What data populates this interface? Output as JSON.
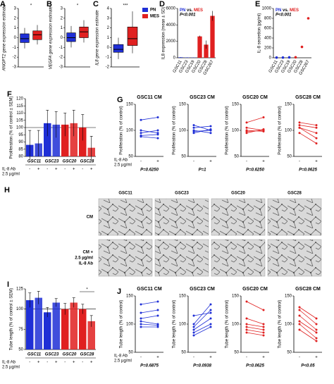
{
  "chart_data": [
    {
      "label": "A",
      "type": "box",
      "ylabel": "ANGPT2 gene expression estimate",
      "annotation": "*",
      "ylim": [
        -3,
        3
      ],
      "yticks": [
        -3,
        -2,
        -1,
        0,
        1,
        2,
        3
      ],
      "series": [
        {
          "color": "#1f2fd6",
          "whisker_low": -1.1,
          "q1": -0.5,
          "median": -0.1,
          "q3": 0.4,
          "whisker_high": 1.0
        },
        {
          "color": "#e02020",
          "whisker_low": -0.7,
          "q1": -0.2,
          "median": 0.3,
          "q3": 0.7,
          "whisker_high": 1.3
        }
      ]
    },
    {
      "label": "B",
      "type": "box",
      "ylabel": "VEGFA gene expression estimate",
      "annotation": "*",
      "ylim": [
        -3,
        3
      ],
      "yticks": [
        -3,
        -2,
        -1,
        0,
        1,
        2,
        3
      ],
      "series": [
        {
          "color": "#1f2fd6",
          "whisker_low": -1.0,
          "q1": -0.4,
          "median": 0.0,
          "q3": 0.5,
          "whisker_high": 1.2
        },
        {
          "color": "#e02020",
          "whisker_low": -0.5,
          "q1": 0.0,
          "median": 0.6,
          "q3": 1.1,
          "whisker_high": 1.8
        }
      ]
    },
    {
      "label": "C",
      "type": "box",
      "ylabel": "IL8 gene expression estimate",
      "annotation": "***",
      "ylim": [
        -2,
        4
      ],
      "yticks": [
        -2,
        -1,
        0,
        1,
        2,
        3,
        4
      ],
      "legend": "upper right",
      "series": [
        {
          "name": "PN",
          "color": "#1f2fd6",
          "whisker_low": -1.2,
          "q1": -0.5,
          "median": -0.2,
          "q3": 0.3,
          "whisker_high": 1.0
        },
        {
          "name": "MES",
          "color": "#e02020",
          "whisker_low": -0.6,
          "q1": 0.2,
          "median": 0.9,
          "q3": 2.1,
          "whisker_high": 3.7
        }
      ]
    },
    {
      "label": "D",
      "type": "bar",
      "ylabel": "IL8 expression (mean ± SD)",
      "annotation": [
        {
          "text": "PN",
          "color": "#1f2fd6"
        },
        {
          "text": "vs.",
          "color": "#000000"
        },
        {
          "text": "MES",
          "color": "#e02020"
        }
      ],
      "p_value": "P<0.001",
      "ylim": [
        0,
        6000
      ],
      "yticks": [
        0,
        2000,
        4000,
        6000
      ],
      "categories": [
        "GSC11",
        "GSC23",
        "GSC19",
        "GSC20",
        "GSC28",
        "GSC267"
      ],
      "values": [
        60,
        40,
        30,
        2600,
        1600,
        5100
      ],
      "errors": [
        20,
        10,
        10,
        100,
        500,
        600
      ],
      "colors": [
        "#1f2fd6",
        "#1f2fd6",
        "#1f2fd6",
        "#e02020",
        "#e02020",
        "#e02020"
      ]
    },
    {
      "label": "E",
      "type": "dot",
      "ylabel": "IL-8 secretion (pg/ml)",
      "annotation": [
        {
          "text": "PN",
          "color": "#1f2fd6"
        },
        {
          "text": "vs.",
          "color": "#000000"
        },
        {
          "text": "MES",
          "color": "#e02020"
        }
      ],
      "p_value": "P<0.001",
      "ylim": [
        0,
        1000
      ],
      "yticks": [
        0,
        200,
        400,
        600,
        800,
        1000
      ],
      "categories": [
        "GSC11",
        "GSC23",
        "GSC19",
        "GSC20",
        "GSC28",
        "GSC267"
      ],
      "values": [
        5,
        5,
        8,
        10,
        220,
        800
      ],
      "colors": [
        "#1f2fd6",
        "#1f2fd6",
        "#1f2fd6",
        "#e02020",
        "#e02020",
        "#e02020"
      ]
    },
    {
      "label": "F",
      "type": "grouped-bar",
      "ylabel": "Proliferation (% of control ± SEM)",
      "ylim": [
        80,
        120
      ],
      "yticks": [
        80,
        85,
        90,
        95,
        100,
        105,
        110,
        115,
        120
      ],
      "refline": 100,
      "groups": [
        "GSC11",
        "GSC23",
        "GSC20",
        "GSC28"
      ],
      "treatment": [
        "-",
        "+",
        "-",
        "+",
        "-",
        "+",
        "-",
        "+"
      ],
      "x_label": [
        "IL-8 Ab",
        "2.5 µg/ml"
      ],
      "values": [
        88,
        89,
        103,
        102,
        102,
        103,
        100,
        86
      ],
      "errors": [
        10,
        9,
        9,
        9,
        8,
        9,
        9,
        8
      ],
      "colors": [
        "#1f2fd6",
        "#1f2fd6",
        "#1f2fd6",
        "#1f2fd6",
        "#e02020",
        "#e02020",
        "#e02020",
        "#e02020"
      ]
    },
    {
      "label": "G",
      "type": "paired-line",
      "title": "GSC11 CM",
      "ylabel": "Proliferation (% of control)",
      "ylim": [
        50,
        150
      ],
      "yticks": [
        50,
        100,
        150
      ],
      "color": "#1f2fd6",
      "treatment": [
        "-",
        "+"
      ],
      "x_label": [
        "IL-8 Ab",
        "2.5 µg/ml"
      ],
      "p_value": "P=0.6250",
      "pairs": [
        [
          120,
          125
        ],
        [
          100,
          95
        ],
        [
          95,
          100
        ],
        [
          90,
          92
        ],
        [
          88,
          85
        ]
      ]
    },
    {
      "type": "paired-line",
      "title": "GSC23 CM",
      "ylabel": "Proliferation (% of control)",
      "ylim": [
        50,
        150
      ],
      "yticks": [
        50,
        100,
        150
      ],
      "color": "#1f2fd6",
      "treatment": [
        "-",
        "+"
      ],
      "p_value": "P=1",
      "pairs": [
        [
          110,
          100
        ],
        [
          105,
          108
        ],
        [
          100,
          95
        ],
        [
          98,
          100
        ],
        [
          95,
          102
        ]
      ]
    },
    {
      "type": "paired-line",
      "title": "GSC20 CM",
      "ylabel": "Proliferation (% of control)",
      "ylim": [
        50,
        150
      ],
      "yticks": [
        50,
        100,
        150
      ],
      "color": "#e02020",
      "treatment": [
        "-",
        "+"
      ],
      "p_value": "P=0.6250",
      "pairs": [
        [
          115,
          125
        ],
        [
          105,
          100
        ],
        [
          100,
          98
        ],
        [
          98,
          100
        ],
        [
          95,
          102
        ]
      ]
    },
    {
      "type": "paired-line",
      "title": "GSC28 CM",
      "ylabel": "Proliferation (% of control)",
      "ylim": [
        50,
        150
      ],
      "yticks": [
        50,
        100,
        150
      ],
      "color": "#e02020",
      "treatment": [
        "-",
        "+"
      ],
      "p_value": "P=0.0625",
      "pairs": [
        [
          115,
          110
        ],
        [
          110,
          105
        ],
        [
          105,
          95
        ],
        [
          105,
          85
        ],
        [
          95,
          75
        ]
      ]
    },
    {
      "label": "I",
      "type": "grouped-bar",
      "ylabel": "Tube length (% of control ± SEM)",
      "annotation": "*",
      "ylim": [
        50,
        125
      ],
      "yticks": [
        50,
        75,
        100,
        125
      ],
      "refline": 100,
      "groups": [
        "GSC11",
        "GSC23",
        "GSC20",
        "GSC28"
      ],
      "treatment": [
        "-",
        "+",
        "-",
        "+",
        "-",
        "+",
        "-",
        "+"
      ],
      "x_label": [
        "IL-8 Ab",
        "2.5 µg/ml"
      ],
      "values": [
        111,
        114,
        96,
        108,
        100,
        108,
        100,
        85
      ],
      "errors": [
        9,
        8,
        6,
        5,
        7,
        6,
        6,
        7
      ],
      "colors": [
        "#1f2fd6",
        "#1f2fd6",
        "#1f2fd6",
        "#1f2fd6",
        "#e02020",
        "#e02020",
        "#e02020",
        "#e02020"
      ]
    },
    {
      "label": "J",
      "type": "paired-line",
      "title": "GSC11 CM",
      "ylabel": "Tube length (% of control)",
      "ylim": [
        50,
        150
      ],
      "yticks": [
        50,
        100,
        150
      ],
      "color": "#1f2fd6",
      "treatment": [
        "-",
        "+"
      ],
      "x_label": [
        "IL-8 Ab",
        "2.5 µg/ml"
      ],
      "p_value": "P=0.6875",
      "pairs": [
        [
          135,
          140
        ],
        [
          120,
          125
        ],
        [
          110,
          115
        ],
        [
          105,
          100
        ],
        [
          100,
          98
        ],
        [
          95,
          95
        ]
      ]
    },
    {
      "type": "paired-line",
      "title": "GSC23 CM",
      "ylabel": "Tube length (% of control)",
      "ylim": [
        50,
        150
      ],
      "yticks": [
        50,
        100,
        150
      ],
      "color": "#1f2fd6",
      "treatment": [
        "-",
        "+"
      ],
      "p_value": "P=0.0938",
      "pairs": [
        [
          115,
          120
        ],
        [
          100,
          135
        ],
        [
          95,
          125
        ],
        [
          90,
          110
        ],
        [
          85,
          100
        ],
        [
          80,
          95
        ]
      ]
    },
    {
      "type": "paired-line",
      "title": "GSC20 CM",
      "ylabel": "Tube length (% of control)",
      "ylim": [
        50,
        150
      ],
      "yticks": [
        50,
        100,
        150
      ],
      "color": "#e02020",
      "treatment": [
        "-",
        "+"
      ],
      "p_value": "P=0.0625",
      "pairs": [
        [
          140,
          125
        ],
        [
          110,
          100
        ],
        [
          100,
          95
        ],
        [
          95,
          90
        ],
        [
          90,
          85
        ],
        [
          85,
          80
        ]
      ]
    },
    {
      "type": "paired-line",
      "title": "GSC28 CM",
      "ylabel": "Tube length (% of control)",
      "ylim": [
        50,
        150
      ],
      "yticks": [
        50,
        100,
        150
      ],
      "color": "#e02020",
      "treatment": [
        "-",
        "+"
      ],
      "p_value": "P<0.05",
      "pairs": [
        [
          130,
          110
        ],
        [
          125,
          100
        ],
        [
          115,
          90
        ],
        [
          105,
          85
        ],
        [
          100,
          75
        ],
        [
          90,
          70
        ]
      ]
    }
  ],
  "panel_h": {
    "label": "H",
    "columns": [
      "GSC11",
      "GSC23",
      "GSC20",
      "GSC28"
    ],
    "rows": [
      [
        "CM"
      ],
      [
        "CM +",
        "2.5 µg/ml",
        "IL-8 Ab"
      ]
    ]
  }
}
